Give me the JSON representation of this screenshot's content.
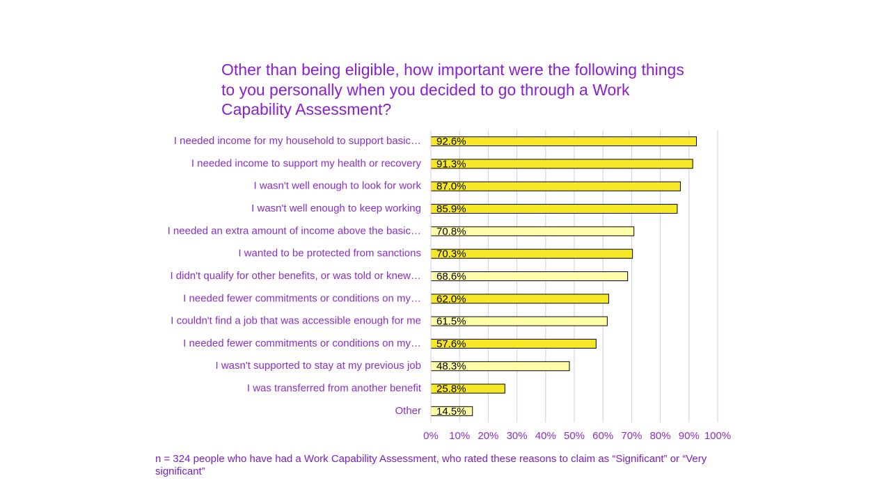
{
  "chart_data": {
    "type": "hbar",
    "title": "Other than being eligible, how important were the following things to you personally when you decided to go through a Work Capability Assessment?",
    "footnote": "n = 324 people who have had a Work Capability Assessment, who rated these reasons to claim as “Significant” or “Very significant”",
    "categories": [
      "I needed income for my household to support basic…",
      "I needed income to support my health or recovery",
      "I wasn't well enough to look for work",
      "I wasn't well enough to keep working",
      "I needed an extra amount of income above the basic…",
      "I wanted to be protected from sanctions",
      "I didn't qualify for other benefits, or was told or knew…",
      "I needed fewer commitments or conditions on my…",
      "I couldn't find a job that was accessible enough for me",
      "I needed fewer commitments or conditions on my…",
      "I wasn't supported to stay at my previous job",
      "I was transferred from another benefit",
      "Other"
    ],
    "values": [
      92.6,
      91.3,
      87.0,
      85.9,
      70.8,
      70.3,
      68.6,
      62.0,
      61.5,
      57.6,
      48.3,
      25.8,
      14.5
    ],
    "value_labels": [
      "92.6%",
      "91.3%",
      "87.0%",
      "85.9%",
      "70.8%",
      "70.3%",
      "68.6%",
      "62.0%",
      "61.5%",
      "57.6%",
      "48.3%",
      "25.8%",
      "14.5%"
    ],
    "colors": [
      "#f7e827",
      "#f7e827",
      "#f7e827",
      "#f7e827",
      "#ffffa8",
      "#f7e827",
      "#ffffa8",
      "#f7e827",
      "#ffffa8",
      "#f7e827",
      "#ffffa8",
      "#f7e827",
      "#ffffa8"
    ],
    "xlim": [
      0,
      100
    ],
    "xticks": [
      {
        "value": 0,
        "label": "0%"
      },
      {
        "value": 10,
        "label": "10%"
      },
      {
        "value": 20,
        "label": "20%"
      },
      {
        "value": 30,
        "label": "30%"
      },
      {
        "value": 40,
        "label": "40%"
      },
      {
        "value": 50,
        "label": "50%"
      },
      {
        "value": 60,
        "label": "60%"
      },
      {
        "value": 70,
        "label": "70%"
      },
      {
        "value": 80,
        "label": "80%"
      },
      {
        "value": 90,
        "label": "90%"
      },
      {
        "value": 100,
        "label": "100%"
      }
    ],
    "grid": true
  }
}
